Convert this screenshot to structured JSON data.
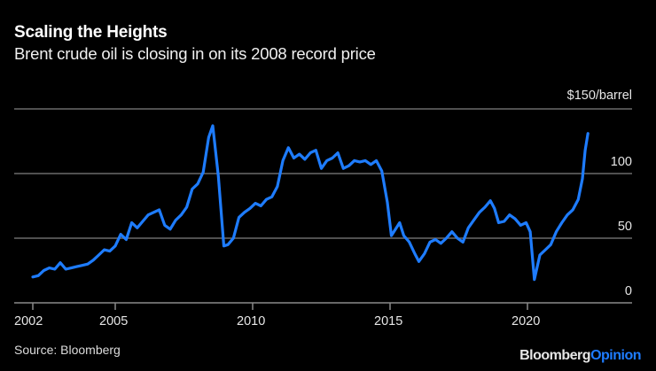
{
  "header": {
    "title": "Scaling the Heights",
    "subtitle": "Brent crude oil is closing in on its 2008 record price"
  },
  "footer": {
    "source": "Source: Bloomberg",
    "brand_primary": "Bloomberg",
    "brand_secondary": "Opinion"
  },
  "colors": {
    "background": "#000000",
    "line": "#1e7cff",
    "grid": "#6b6b6b",
    "text": "#e6e6e6"
  },
  "chart_data": {
    "type": "line",
    "title": "Scaling the Heights",
    "subtitle": "Brent crude oil is closing in on its 2008 record price",
    "xlabel": "",
    "ylabel": "$/barrel",
    "unit_label": "$150/barrel",
    "xlim": [
      2001.3,
      2023.7
    ],
    "ylim": [
      0,
      150
    ],
    "grid": true,
    "legend": "none",
    "x_ticks": [
      2002,
      2005,
      2010,
      2015,
      2020
    ],
    "x_tick_labels": [
      "2002",
      "2005",
      "2010",
      "2015",
      "2020"
    ],
    "y_ticks": [
      0,
      50,
      100,
      150
    ],
    "y_tick_labels": [
      "0",
      "50",
      "100",
      "$150/barrel"
    ],
    "series": [
      {
        "name": "Brent crude oil",
        "x": [
          2002.0,
          2002.2,
          2002.4,
          2002.6,
          2002.8,
          2003.0,
          2003.2,
          2003.4,
          2003.6,
          2003.8,
          2004.0,
          2004.2,
          2004.4,
          2004.6,
          2004.8,
          2005.0,
          2005.2,
          2005.4,
          2005.6,
          2005.8,
          2006.0,
          2006.2,
          2006.4,
          2006.6,
          2006.8,
          2007.0,
          2007.2,
          2007.4,
          2007.6,
          2007.8,
          2008.0,
          2008.2,
          2008.4,
          2008.55,
          2008.75,
          2008.95,
          2009.1,
          2009.3,
          2009.5,
          2009.7,
          2009.9,
          2010.1,
          2010.3,
          2010.5,
          2010.7,
          2010.9,
          2011.1,
          2011.3,
          2011.5,
          2011.7,
          2011.9,
          2012.1,
          2012.3,
          2012.5,
          2012.7,
          2012.9,
          2013.1,
          2013.3,
          2013.5,
          2013.7,
          2013.9,
          2014.1,
          2014.3,
          2014.5,
          2014.7,
          2014.9,
          2015.05,
          2015.2,
          2015.35,
          2015.5,
          2015.7,
          2015.9,
          2016.05,
          2016.25,
          2016.45,
          2016.65,
          2016.85,
          2017.05,
          2017.25,
          2017.45,
          2017.65,
          2017.85,
          2018.05,
          2018.25,
          2018.45,
          2018.65,
          2018.8,
          2018.95,
          2019.15,
          2019.35,
          2019.55,
          2019.75,
          2019.95,
          2020.1,
          2020.25,
          2020.45,
          2020.65,
          2020.85,
          2021.05,
          2021.25,
          2021.45,
          2021.65,
          2021.85,
          2022.0,
          2022.1,
          2022.2
        ],
        "values": [
          20,
          21,
          25,
          27,
          26,
          31,
          26,
          27,
          28,
          29,
          30,
          33,
          37,
          41,
          40,
          44,
          53,
          49,
          62,
          58,
          63,
          68,
          70,
          72,
          60,
          57,
          64,
          68,
          74,
          88,
          92,
          101,
          128,
          137,
          98,
          44,
          45,
          50,
          66,
          70,
          73,
          77,
          75,
          80,
          82,
          90,
          110,
          120,
          112,
          115,
          111,
          116,
          118,
          104,
          110,
          112,
          116,
          104,
          106,
          110,
          109,
          110,
          107,
          110,
          102,
          78,
          52,
          57,
          62,
          52,
          47,
          38,
          32,
          38,
          47,
          49,
          46,
          50,
          55,
          50,
          47,
          58,
          64,
          70,
          74,
          79,
          73,
          62,
          63,
          68,
          65,
          60,
          62,
          55,
          18,
          37,
          41,
          45,
          55,
          62,
          68,
          72,
          80,
          96,
          118,
          131
        ]
      }
    ]
  }
}
